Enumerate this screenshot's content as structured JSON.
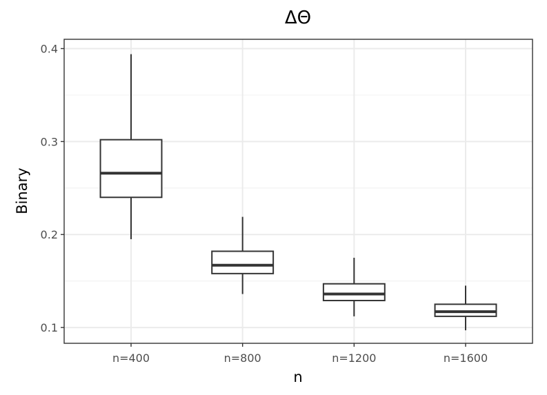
{
  "chart_data": {
    "type": "boxplot",
    "title": "ΔΘ",
    "xlabel": "n",
    "ylabel": "Binary",
    "categories": [
      "n=400",
      "n=800",
      "n=1200",
      "n=1600"
    ],
    "ylim": [
      0.083,
      0.41
    ],
    "yticks": [
      0.1,
      0.2,
      0.3,
      0.4
    ],
    "ytick_labels": [
      "0.1",
      "0.2",
      "0.3",
      "0.4"
    ],
    "grid": true,
    "boxes": [
      {
        "category": "n=400",
        "min": 0.195,
        "q1": 0.24,
        "median": 0.266,
        "q3": 0.302,
        "max": 0.394
      },
      {
        "category": "n=800",
        "min": 0.136,
        "q1": 0.158,
        "median": 0.167,
        "q3": 0.182,
        "max": 0.219
      },
      {
        "category": "n=1200",
        "min": 0.112,
        "q1": 0.129,
        "median": 0.136,
        "q3": 0.147,
        "max": 0.175
      },
      {
        "category": "n=1600",
        "min": 0.097,
        "q1": 0.112,
        "median": 0.117,
        "q3": 0.125,
        "max": 0.145
      }
    ]
  }
}
